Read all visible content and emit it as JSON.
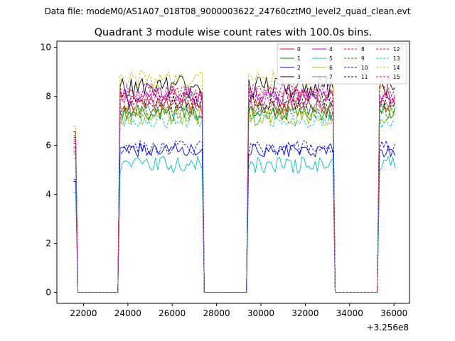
{
  "figure": {
    "suptitle": "Data file: modeM0/AS1A07_018T08_9000003622_24760cztM0_level2_quad_clean.evt",
    "offset_label": "+3.256e8"
  },
  "chart_data": {
    "type": "line",
    "title": "Quadrant 3 module wise count rates with 100.0s bins.",
    "xlabel": "",
    "ylabel": "",
    "xlim": [
      20800,
      36700
    ],
    "ylim": [
      -0.45,
      10.25
    ],
    "x_offset": 325600000,
    "xticks": [
      22000,
      24000,
      26000,
      28000,
      30000,
      32000,
      34000,
      36000
    ],
    "xtick_labels": [
      "22000",
      "24000",
      "26000",
      "28000",
      "30000",
      "32000",
      "34000",
      "36000"
    ],
    "yticks": [
      0,
      2,
      4,
      6,
      8,
      10
    ],
    "ytick_labels": [
      "0",
      "2",
      "4",
      "6",
      "8",
      "10"
    ],
    "bin_size_s": 100,
    "x_start": 21550,
    "n_bins": 146,
    "on_intervals": [
      [
        21550,
        21650
      ],
      [
        23650,
        27350
      ],
      [
        29450,
        33250
      ],
      [
        35350,
        36050
      ]
    ],
    "legend_position": "top-right",
    "legend_columns": 4,
    "series": [
      {
        "name": "0",
        "color": "#ff0000",
        "dash": "solid",
        "level": 7.6,
        "spread": 0.35
      },
      {
        "name": "1",
        "color": "#008000",
        "dash": "solid",
        "level": 7.3,
        "spread": 0.3
      },
      {
        "name": "2",
        "color": "#0000ff",
        "dash": "solid",
        "level": 5.8,
        "spread": 0.3
      },
      {
        "name": "3",
        "color": "#000000",
        "dash": "solid",
        "level": 8.4,
        "spread": 0.45
      },
      {
        "name": "4",
        "color": "#bf00bf",
        "dash": "solid",
        "level": 8.0,
        "spread": 0.35
      },
      {
        "name": "5",
        "color": "#00bfbf",
        "dash": "solid",
        "level": 5.2,
        "spread": 0.35
      },
      {
        "name": "6",
        "color": "#bfbf00",
        "dash": "solid",
        "level": 7.2,
        "spread": 0.4
      },
      {
        "name": "7",
        "color": "#808080",
        "dash": "solid",
        "level": 7.5,
        "spread": 0.3
      },
      {
        "name": "8",
        "color": "#ff0000",
        "dash": "dashed",
        "level": 8.1,
        "spread": 0.35
      },
      {
        "name": "9",
        "color": "#008000",
        "dash": "dashed",
        "level": 7.4,
        "spread": 0.35
      },
      {
        "name": "10",
        "color": "#0000ff",
        "dash": "dashed",
        "level": 5.9,
        "spread": 0.3
      },
      {
        "name": "11",
        "color": "#000000",
        "dash": "dashed",
        "level": 7.8,
        "spread": 0.35
      },
      {
        "name": "12",
        "color": "#bf00bf",
        "dash": "dashed",
        "level": 8.2,
        "spread": 0.35
      },
      {
        "name": "13",
        "color": "#00bfbf",
        "dash": "dashed",
        "level": 7.0,
        "spread": 0.3
      },
      {
        "name": "14",
        "color": "#bfbf00",
        "dash": "dashed",
        "level": 8.7,
        "spread": 0.4
      },
      {
        "name": "15",
        "color": "#bf00bf",
        "dash": "dashed",
        "level": 7.9,
        "spread": 0.3
      }
    ]
  }
}
